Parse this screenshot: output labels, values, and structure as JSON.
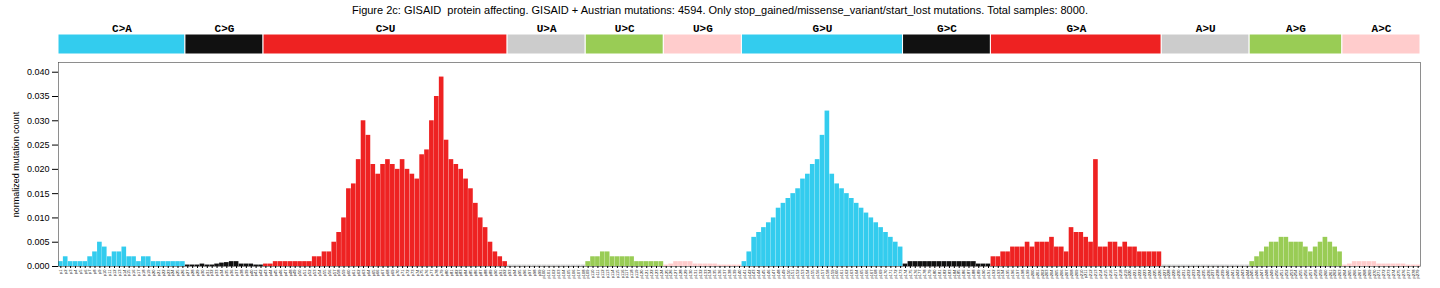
{
  "chart_data": {
    "type": "bar",
    "title": "Figure 2c: GISAID  protein affecting. GISAID + Austrian mutations: 4594. Only stop_gained/missense_variant/start_lost mutations. Total samples: 8000.",
    "ylabel": "normalized mutation count",
    "ylim": [
      0,
      0.042
    ],
    "yticks": [
      {
        "value": 0.0,
        "label": "0.000"
      },
      {
        "value": 0.005,
        "label": "0.005"
      },
      {
        "value": 0.01,
        "label": "0.010"
      },
      {
        "value": 0.015,
        "label": "0.015"
      },
      {
        "value": 0.02,
        "label": "0.020"
      },
      {
        "value": 0.025,
        "label": "0.025"
      },
      {
        "value": 0.03,
        "label": "0.030"
      },
      {
        "value": 0.035,
        "label": "0.035"
      },
      {
        "value": 0.04,
        "label": "0.040"
      }
    ],
    "series": [
      {
        "name": "C>A",
        "color": "#33CCEE",
        "categories": [
          "p1",
          "p2",
          "p3",
          "p4",
          "p5",
          "p6",
          "p7",
          "p8",
          "p9",
          "p10",
          "p11",
          "p12",
          "p13",
          "p14",
          "p15",
          "p16",
          "p17",
          "p18",
          "p19",
          "p20",
          "p21",
          "p22",
          "p23",
          "p24",
          "p25",
          "p26"
        ],
        "values": [
          0.001,
          0.002,
          0.001,
          0.001,
          0.001,
          0.001,
          0.002,
          0.003,
          0.005,
          0.004,
          0.002,
          0.003,
          0.003,
          0.004,
          0.002,
          0.002,
          0.001,
          0.002,
          0.002,
          0.001,
          0.001,
          0.001,
          0.001,
          0.001,
          0.001,
          0.001
        ]
      },
      {
        "name": "C>G",
        "color": "#111111",
        "categories": [
          "p27",
          "p28",
          "p29",
          "p30",
          "p31",
          "p32",
          "p33",
          "p34",
          "p35",
          "p36",
          "p37",
          "p38",
          "p39",
          "p40",
          "p41",
          "p42"
        ],
        "values": [
          0.0003,
          0.0003,
          0.0003,
          0.0005,
          0.0003,
          0.0003,
          0.0005,
          0.0007,
          0.0008,
          0.001,
          0.001,
          0.0005,
          0.0005,
          0.0005,
          0.0003,
          0.0003
        ]
      },
      {
        "name": "C>U",
        "color": "#EE2222",
        "categories": [
          "p43",
          "p44",
          "p45",
          "p46",
          "p47",
          "p48",
          "p49",
          "p50",
          "p51",
          "p52",
          "p53",
          "p54",
          "p55",
          "p56",
          "p57",
          "p58",
          "p59",
          "p60",
          "p61",
          "p62",
          "p63",
          "p64",
          "p65",
          "p66",
          "p67",
          "p68",
          "p69",
          "p70",
          "p71",
          "p72",
          "p73",
          "p74",
          "p75",
          "p76",
          "p77",
          "p78",
          "p79",
          "p80",
          "p81",
          "p82",
          "p83",
          "p84",
          "p85",
          "p86",
          "p87",
          "p88",
          "p89",
          "p90",
          "p91",
          "p92"
        ],
        "values": [
          0.0005,
          0.0005,
          0.001,
          0.001,
          0.001,
          0.001,
          0.001,
          0.001,
          0.001,
          0.001,
          0.002,
          0.002,
          0.003,
          0.003,
          0.005,
          0.007,
          0.01,
          0.016,
          0.017,
          0.022,
          0.03,
          0.027,
          0.021,
          0.019,
          0.021,
          0.022,
          0.021,
          0.02,
          0.022,
          0.02,
          0.019,
          0.018,
          0.023,
          0.024,
          0.03,
          0.035,
          0.039,
          0.026,
          0.022,
          0.021,
          0.02,
          0.018,
          0.016,
          0.013,
          0.01,
          0.008,
          0.005,
          0.003,
          0.002,
          0.001
        ]
      },
      {
        "name": "U>A",
        "color": "#CCCCCC",
        "categories": [
          "p93",
          "p94",
          "p95",
          "p96",
          "p97",
          "p98",
          "p99",
          "p100",
          "p101",
          "p102",
          "p103",
          "p104",
          "p105",
          "p106",
          "p107",
          "p108"
        ],
        "values": [
          0.0003,
          0.0003,
          0.0003,
          0.0003,
          0.0003,
          0.0003,
          0.0003,
          0.0003,
          0.0003,
          0.0003,
          0.0003,
          0.0003,
          0.0003,
          0.0003,
          0.0003,
          0.0003
        ]
      },
      {
        "name": "U>C",
        "color": "#99CC55",
        "categories": [
          "p109",
          "p110",
          "p111",
          "p112",
          "p113",
          "p114",
          "p115",
          "p116",
          "p117",
          "p118",
          "p119",
          "p120",
          "p121",
          "p122",
          "p123",
          "p124"
        ],
        "values": [
          0.001,
          0.002,
          0.002,
          0.003,
          0.003,
          0.002,
          0.002,
          0.002,
          0.002,
          0.002,
          0.001,
          0.001,
          0.001,
          0.001,
          0.001,
          0.001
        ]
      },
      {
        "name": "U>G",
        "color": "#FFCCCC",
        "categories": [
          "p125",
          "p126",
          "p127",
          "p128",
          "p129",
          "p130",
          "p131",
          "p132",
          "p133",
          "p134",
          "p135",
          "p136",
          "p137",
          "p138",
          "p139",
          "p140"
        ],
        "values": [
          0.0003,
          0.0005,
          0.001,
          0.001,
          0.001,
          0.001,
          0.0005,
          0.0005,
          0.0005,
          0.0005,
          0.0005,
          0.0003,
          0.0003,
          0.0003,
          0.0003,
          0.0003
        ]
      },
      {
        "name": "G>U",
        "color": "#33CCEE",
        "categories": [
          "p141",
          "p142",
          "p143",
          "p144",
          "p145",
          "p146",
          "p147",
          "p148",
          "p149",
          "p150",
          "p151",
          "p152",
          "p153",
          "p154",
          "p155",
          "p156",
          "p157",
          "p158",
          "p159",
          "p160",
          "p161",
          "p162",
          "p163",
          "p164",
          "p165",
          "p166",
          "p167",
          "p168",
          "p169",
          "p170",
          "p171",
          "p172",
          "p173"
        ],
        "values": [
          0.001,
          0.003,
          0.006,
          0.007,
          0.008,
          0.009,
          0.01,
          0.012,
          0.013,
          0.014,
          0.015,
          0.016,
          0.018,
          0.019,
          0.021,
          0.022,
          0.027,
          0.032,
          0.019,
          0.017,
          0.016,
          0.015,
          0.014,
          0.013,
          0.012,
          0.011,
          0.01,
          0.009,
          0.008,
          0.007,
          0.006,
          0.005,
          0.004
        ]
      },
      {
        "name": "G>C",
        "color": "#111111",
        "categories": [
          "p174",
          "p175",
          "p176",
          "p177",
          "p178",
          "p179",
          "p180",
          "p181",
          "p182",
          "p183",
          "p184",
          "p185",
          "p186",
          "p187",
          "p188",
          "p189",
          "p190",
          "p191"
        ],
        "values": [
          0.0005,
          0.001,
          0.001,
          0.001,
          0.001,
          0.001,
          0.001,
          0.001,
          0.001,
          0.001,
          0.001,
          0.001,
          0.001,
          0.001,
          0.001,
          0.0005,
          0.0005,
          0.0005
        ]
      },
      {
        "name": "G>A",
        "color": "#EE2222",
        "categories": [
          "p192",
          "p193",
          "p194",
          "p195",
          "p196",
          "p197",
          "p198",
          "p199",
          "p200",
          "p201",
          "p202",
          "p203",
          "p204",
          "p205",
          "p206",
          "p207",
          "p208",
          "p209",
          "p210",
          "p211",
          "p212",
          "p213",
          "p214",
          "p215",
          "p216",
          "p217",
          "p218",
          "p219",
          "p220",
          "p221",
          "p222",
          "p223",
          "p224",
          "p225",
          "p226"
        ],
        "values": [
          0.002,
          0.002,
          0.003,
          0.003,
          0.004,
          0.004,
          0.004,
          0.005,
          0.004,
          0.005,
          0.005,
          0.005,
          0.006,
          0.004,
          0.004,
          0.003,
          0.008,
          0.007,
          0.007,
          0.006,
          0.005,
          0.022,
          0.004,
          0.004,
          0.005,
          0.005,
          0.004,
          0.005,
          0.004,
          0.004,
          0.003,
          0.003,
          0.003,
          0.003,
          0.003
        ]
      },
      {
        "name": "A>U",
        "color": "#CCCCCC",
        "categories": [
          "p227",
          "p228",
          "p229",
          "p230",
          "p231",
          "p232",
          "p233",
          "p234",
          "p235",
          "p236",
          "p237",
          "p238",
          "p239",
          "p240",
          "p241",
          "p242",
          "p243",
          "p244"
        ],
        "values": [
          0.0003,
          0.0003,
          0.0003,
          0.0003,
          0.0003,
          0.0003,
          0.0003,
          0.0003,
          0.0003,
          0.0003,
          0.0003,
          0.0003,
          0.0003,
          0.0003,
          0.0003,
          0.0003,
          0.0003,
          0.0003
        ]
      },
      {
        "name": "A>G",
        "color": "#99CC55",
        "categories": [
          "p245",
          "p246",
          "p247",
          "p248",
          "p249",
          "p250",
          "p251",
          "p252",
          "p253",
          "p254",
          "p255",
          "p256",
          "p257",
          "p258",
          "p259",
          "p260",
          "p261",
          "p262",
          "p263"
        ],
        "values": [
          0.001,
          0.002,
          0.003,
          0.004,
          0.005,
          0.005,
          0.006,
          0.006,
          0.005,
          0.005,
          0.005,
          0.004,
          0.003,
          0.004,
          0.005,
          0.006,
          0.005,
          0.004,
          0.003
        ]
      },
      {
        "name": "A>C",
        "color": "#FFCCCC",
        "categories": [
          "p264",
          "p265",
          "p266",
          "p267",
          "p268",
          "p269",
          "p270",
          "p271",
          "p272",
          "p273",
          "p274",
          "p275",
          "p276",
          "p277",
          "p278",
          "p279"
        ],
        "values": [
          0.0003,
          0.0005,
          0.001,
          0.001,
          0.001,
          0.001,
          0.001,
          0.0005,
          0.0005,
          0.0005,
          0.0005,
          0.0005,
          0.0005,
          0.0003,
          0.0003,
          0.0003
        ]
      }
    ]
  }
}
